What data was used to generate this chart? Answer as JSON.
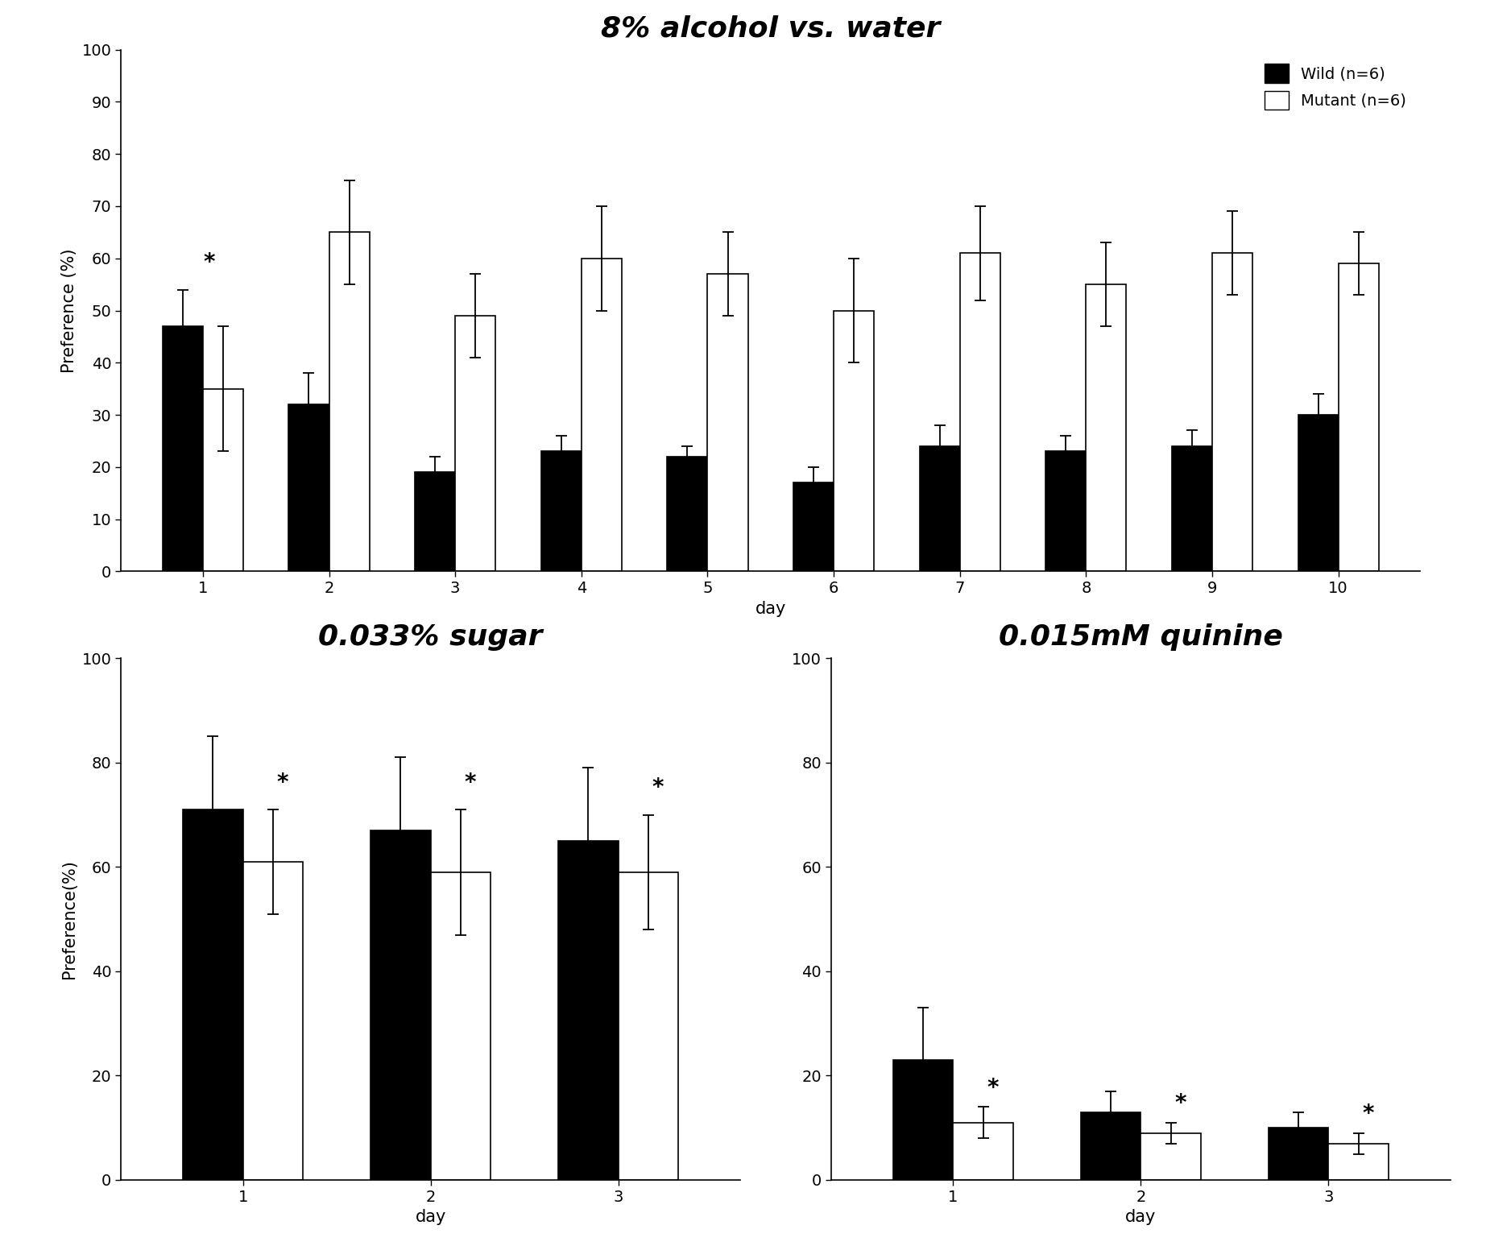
{
  "alcohol": {
    "title": "8% alcohol vs. water",
    "xlabel": "day",
    "ylabel": "Preference (%)",
    "days": [
      1,
      2,
      3,
      4,
      5,
      6,
      7,
      8,
      9,
      10
    ],
    "wild_mean": [
      47,
      32,
      19,
      23,
      22,
      17,
      24,
      23,
      24,
      30
    ],
    "wild_err": [
      7,
      6,
      3,
      3,
      2,
      3,
      4,
      3,
      3,
      4
    ],
    "mutant_mean": [
      35,
      65,
      49,
      60,
      57,
      50,
      61,
      55,
      61,
      59
    ],
    "mutant_err": [
      12,
      10,
      8,
      10,
      8,
      10,
      9,
      8,
      8,
      6
    ],
    "star_day": 1,
    "ylim": [
      0,
      100
    ],
    "yticks": [
      0,
      10,
      20,
      30,
      40,
      50,
      60,
      70,
      80,
      90,
      100
    ]
  },
  "sugar": {
    "title": "0.033% sugar",
    "xlabel": "day",
    "ylabel": "Preference(%)",
    "days": [
      1,
      2,
      3
    ],
    "wild_mean": [
      71,
      67,
      65
    ],
    "wild_err": [
      14,
      14,
      14
    ],
    "mutant_mean": [
      61,
      59,
      59
    ],
    "mutant_err": [
      10,
      12,
      11
    ],
    "star_days": [
      1,
      2,
      3
    ],
    "ylim": [
      0,
      100
    ],
    "yticks": [
      0,
      20,
      40,
      60,
      80,
      100
    ]
  },
  "quinine": {
    "title": "0.015mM quinine",
    "xlabel": "day",
    "ylabel": "",
    "days": [
      1,
      2,
      3
    ],
    "wild_mean": [
      23,
      13,
      10
    ],
    "wild_err": [
      10,
      4,
      3
    ],
    "mutant_mean": [
      11,
      9,
      7
    ],
    "mutant_err": [
      3,
      2,
      2
    ],
    "star_days": [
      1,
      2,
      3
    ],
    "ylim": [
      0,
      100
    ],
    "yticks": [
      0,
      20,
      40,
      60,
      80,
      100
    ]
  },
  "legend": {
    "wild_label": "Wild (n=6)",
    "mutant_label": "Mutant (n=6)"
  },
  "bar_width": 0.32,
  "wild_color": "#000000",
  "mutant_color": "#ffffff",
  "edge_color": "#000000",
  "background_color": "#ffffff",
  "axes_bg": "#ffffff"
}
